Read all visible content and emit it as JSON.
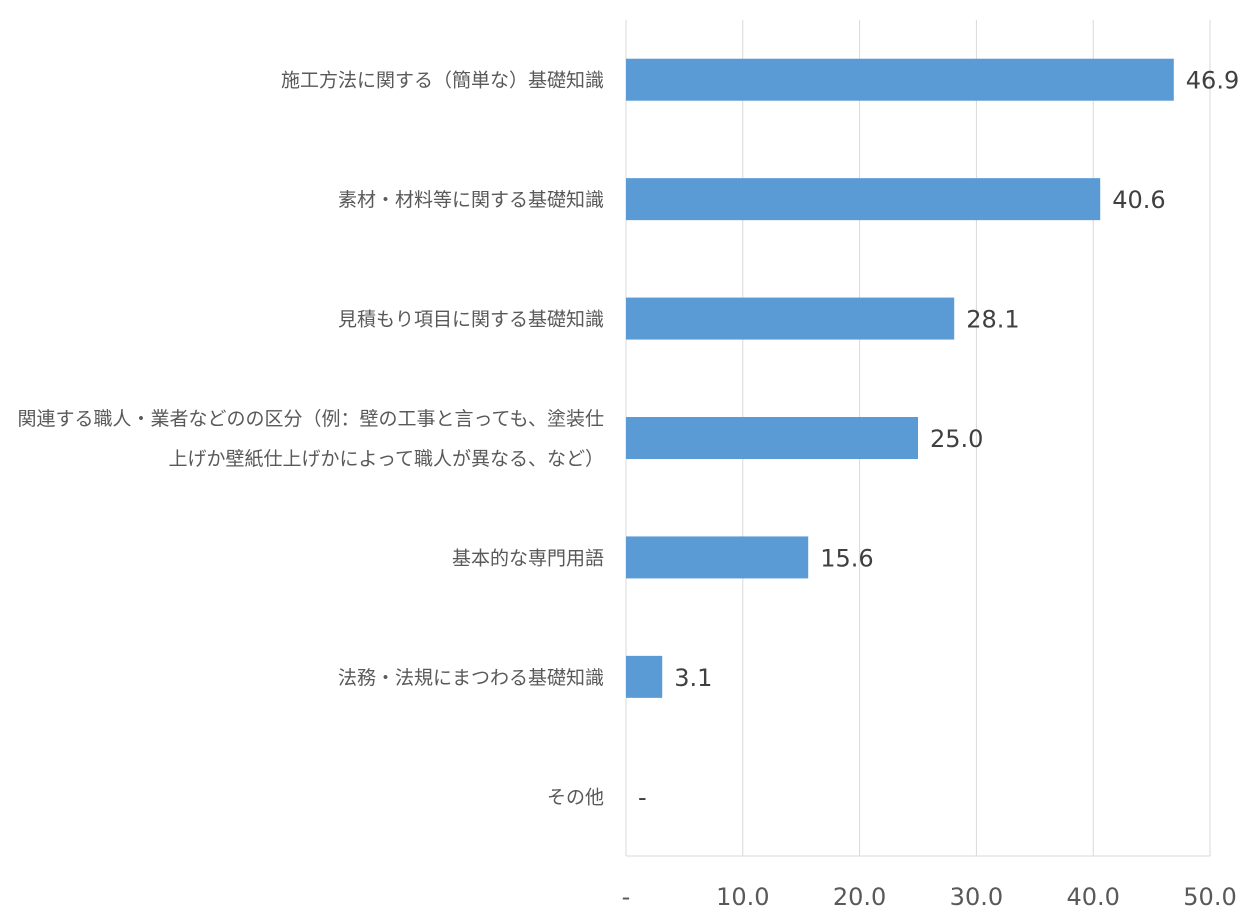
{
  "chart_data": {
    "type": "bar",
    "orientation": "horizontal",
    "categories": [
      [
        "施工方法に関する（簡単な）基礎知識"
      ],
      [
        "素材・材料等に関する基礎知識"
      ],
      [
        "見積もり項目に関する基礎知識"
      ],
      [
        "関連する職人・業者などのの区分（例：壁の工事と言っても、塗装仕",
        "上げか壁紙仕上げかによって職人が異なる、など）"
      ],
      [
        "基本的な専門用語"
      ],
      [
        "法務・法規にまつわる基礎知識"
      ],
      [
        "その他"
      ]
    ],
    "values": [
      46.9,
      40.6,
      28.1,
      25.0,
      15.6,
      3.1,
      0
    ],
    "data_labels": [
      "46.9",
      "40.6",
      "28.1",
      "25.0",
      "15.6",
      "3.1",
      "-"
    ],
    "xlim": [
      0,
      50
    ],
    "xticks": [
      0,
      10,
      20,
      30,
      40,
      50
    ],
    "xtick_labels": [
      "-",
      "10.0",
      "20.0",
      "30.0",
      "40.0",
      "50.0"
    ],
    "grid": true,
    "bar_color": "#5b9bd5"
  }
}
